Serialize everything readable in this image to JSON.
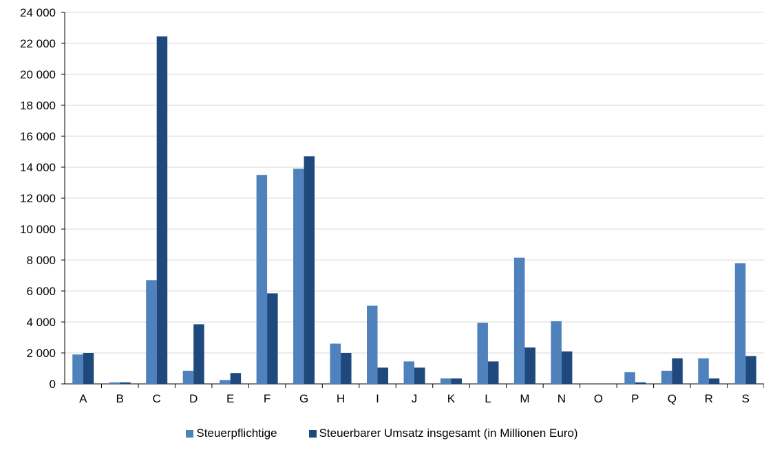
{
  "chart_data": {
    "type": "bar",
    "title": "",
    "xlabel": "",
    "ylabel": "",
    "categories": [
      "A",
      "B",
      "C",
      "D",
      "E",
      "F",
      "G",
      "H",
      "I",
      "J",
      "K",
      "L",
      "M",
      "N",
      "O",
      "P",
      "Q",
      "R",
      "S"
    ],
    "series": [
      {
        "name": "Steuerpflichtige",
        "color": "#4f81bd",
        "values": [
          1900,
          100,
          6700,
          850,
          250,
          13500,
          13900,
          2600,
          5050,
          1450,
          350,
          3950,
          8150,
          4050,
          0,
          750,
          850,
          1650,
          7800
        ]
      },
      {
        "name": "Steuerbarer Umsatz insgesamt (in Millionen Euro)",
        "color": "#1f497d",
        "values": [
          2000,
          100,
          22450,
          3850,
          700,
          5850,
          14700,
          2000,
          1050,
          1050,
          350,
          1450,
          2350,
          2100,
          0,
          100,
          1650,
          350,
          1800
        ]
      }
    ],
    "ylim": [
      0,
      24000
    ],
    "yticks": [
      0,
      2000,
      4000,
      6000,
      8000,
      10000,
      12000,
      14000,
      16000,
      18000,
      20000,
      22000,
      24000
    ],
    "ytick_labels": [
      "0",
      "2 000",
      "4 000",
      "6 000",
      "8 000",
      "10 000",
      "12 000",
      "14 000",
      "16 000",
      "18 000",
      "20 000",
      "22 000",
      "24 000"
    ],
    "grid": true,
    "legend_position": "bottom"
  }
}
